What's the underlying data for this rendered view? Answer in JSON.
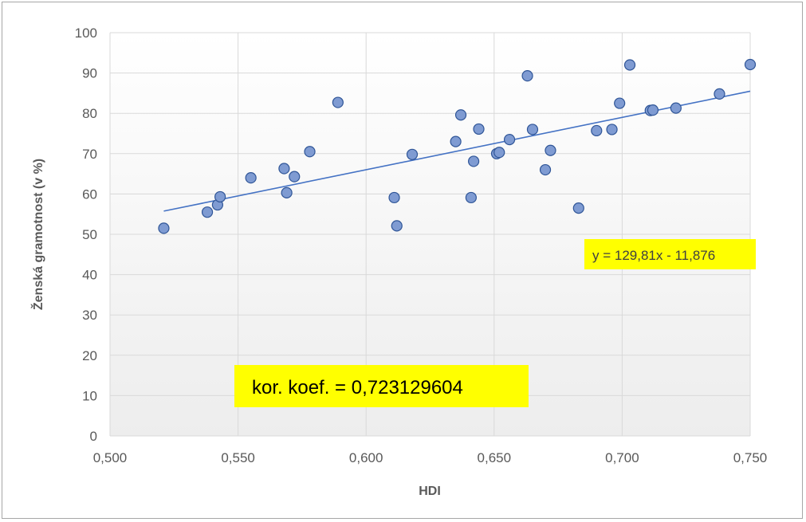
{
  "chart_data": {
    "type": "scatter",
    "xlabel": "HDI",
    "ylabel": "Ženská gramotnost (v %)",
    "xlim": [
      0.5,
      0.75
    ],
    "ylim": [
      0,
      100
    ],
    "x_ticks": [
      "0,500",
      "0,550",
      "0,600",
      "0,650",
      "0,700",
      "0,750"
    ],
    "y_ticks": [
      "0",
      "10",
      "20",
      "30",
      "40",
      "50",
      "60",
      "70",
      "80",
      "90",
      "100"
    ],
    "grid": true,
    "legend": "none",
    "points": [
      {
        "x": 0.521,
        "y": 51.5
      },
      {
        "x": 0.538,
        "y": 55.5
      },
      {
        "x": 0.542,
        "y": 57.3
      },
      {
        "x": 0.543,
        "y": 59.3
      },
      {
        "x": 0.555,
        "y": 64.0
      },
      {
        "x": 0.568,
        "y": 66.3
      },
      {
        "x": 0.569,
        "y": 60.3
      },
      {
        "x": 0.572,
        "y": 64.3
      },
      {
        "x": 0.578,
        "y": 70.5
      },
      {
        "x": 0.589,
        "y": 82.7
      },
      {
        "x": 0.611,
        "y": 59.1
      },
      {
        "x": 0.612,
        "y": 52.1
      },
      {
        "x": 0.618,
        "y": 69.8
      },
      {
        "x": 0.635,
        "y": 73.0
      },
      {
        "x": 0.637,
        "y": 79.6
      },
      {
        "x": 0.641,
        "y": 59.1
      },
      {
        "x": 0.642,
        "y": 68.1
      },
      {
        "x": 0.644,
        "y": 76.1
      },
      {
        "x": 0.651,
        "y": 70.0
      },
      {
        "x": 0.652,
        "y": 70.3
      },
      {
        "x": 0.656,
        "y": 73.5
      },
      {
        "x": 0.663,
        "y": 89.3
      },
      {
        "x": 0.665,
        "y": 76.0
      },
      {
        "x": 0.67,
        "y": 66.0
      },
      {
        "x": 0.672,
        "y": 70.8
      },
      {
        "x": 0.683,
        "y": 56.5
      },
      {
        "x": 0.69,
        "y": 75.7
      },
      {
        "x": 0.696,
        "y": 76.0
      },
      {
        "x": 0.699,
        "y": 82.5
      },
      {
        "x": 0.703,
        "y": 92.0
      },
      {
        "x": 0.711,
        "y": 80.7
      },
      {
        "x": 0.712,
        "y": 80.8
      },
      {
        "x": 0.721,
        "y": 81.3
      },
      {
        "x": 0.738,
        "y": 84.8
      },
      {
        "x": 0.75,
        "y": 92.1
      }
    ],
    "trendline": {
      "slope": 129.81,
      "intercept": -11.876,
      "x_range": [
        0.521,
        0.75
      ]
    },
    "trendline_label": "y = 129,81x - 11,876",
    "annotation": "kor. koef. = 0,723129604",
    "colors": {
      "marker_fill": "#7f9bd2",
      "marker_stroke": "#2f5597",
      "trendline": "#4472c4",
      "grid": "#d9d9d9",
      "axis_text": "#595959",
      "label_bg": "#ffff00",
      "plot_bg_top": "#ffffff",
      "plot_bg_bottom": "#ededed"
    }
  }
}
